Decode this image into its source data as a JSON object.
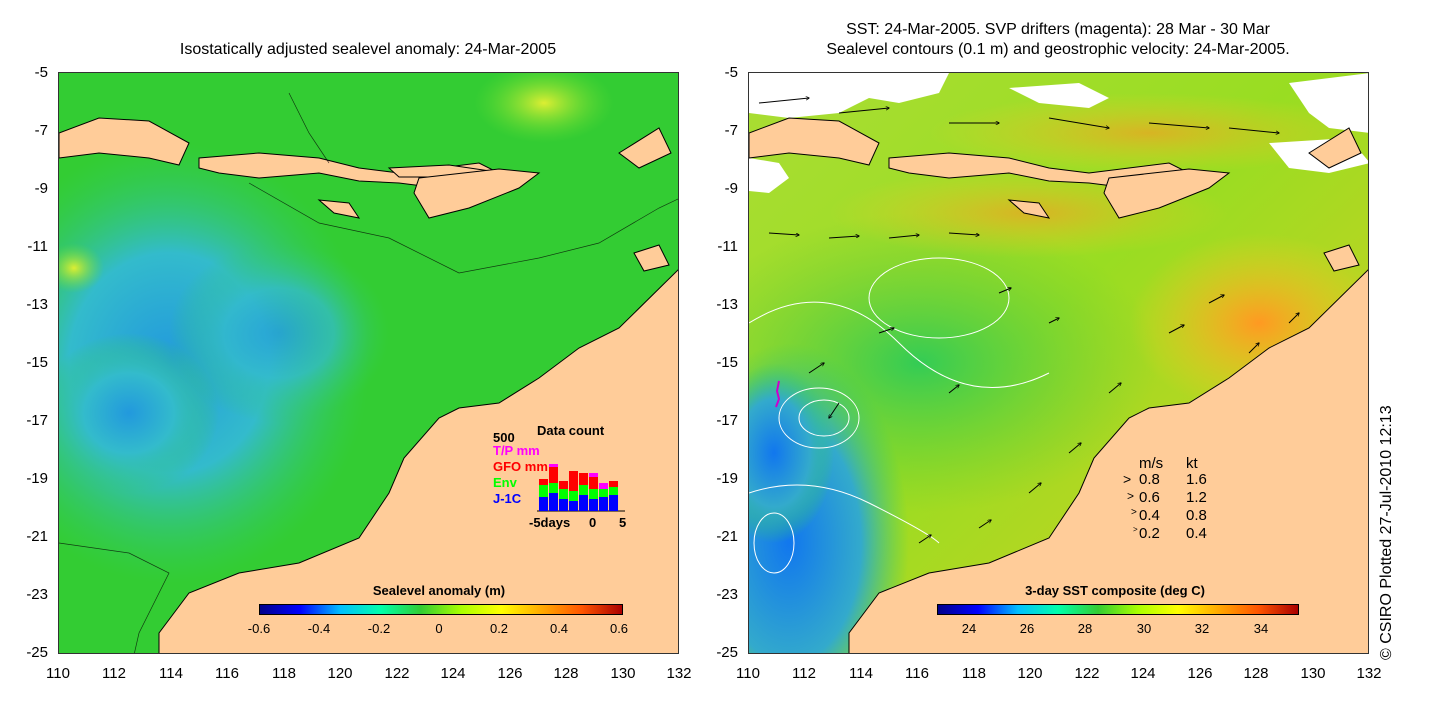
{
  "left": {
    "title": "Isostatically adjusted sealevel anomaly: 24-Mar-2005",
    "colorbar": {
      "label": "Sealevel anomaly (m)",
      "ticks": [
        "-0.6",
        "-0.4",
        "-0.2",
        "0",
        "0.2",
        "0.4",
        "0.6"
      ]
    },
    "inset": {
      "title": "Data count",
      "ymax": "500",
      "missions": [
        {
          "name": "T/P mm",
          "color": "#ff00ff"
        },
        {
          "name": "GFO mm",
          "color": "#ff0000"
        },
        {
          "name": "Env",
          "color": "#00ff00"
        },
        {
          "name": "J-1C",
          "color": "#0000ff"
        }
      ],
      "xlabels": [
        "-5days",
        "0",
        "5"
      ]
    }
  },
  "right": {
    "title_line1": "SST: 24-Mar-2005. SVP drifters (magenta): 28 Mar - 30 Mar",
    "title_line2": "Sealevel contours (0.1 m) and geostrophic velocity: 24-Mar-2005.",
    "colorbar": {
      "label": "3-day SST composite (deg C)",
      "ticks": [
        "24",
        "26",
        "28",
        "30",
        "32",
        "34"
      ]
    },
    "velocity_legend": {
      "header_ms": "m/s",
      "header_kt": "kt",
      "rows": [
        {
          "ms": "0.8",
          "kt": "1.6"
        },
        {
          "ms": "0.6",
          "kt": "1.2"
        },
        {
          "ms": "0.4",
          "kt": "0.8"
        },
        {
          "ms": "0.2",
          "kt": "0.4"
        }
      ]
    }
  },
  "axes": {
    "lat_labels": [
      "-5",
      "-7",
      "-9",
      "-11",
      "-13",
      "-15",
      "-17",
      "-19",
      "-21",
      "-23",
      "-25"
    ],
    "lon_labels": [
      "110",
      "112",
      "114",
      "116",
      "118",
      "120",
      "122",
      "124",
      "126",
      "128",
      "130",
      "132"
    ]
  },
  "credit": "© CSIRO Plotted 27-Jul-2010 12:13",
  "colors": {
    "land": "#ffcc99",
    "ocean_green": "#33cc33",
    "sla_low": "#33bbdd",
    "sst_high": "#ff9900",
    "cloud": "#ffffff"
  }
}
